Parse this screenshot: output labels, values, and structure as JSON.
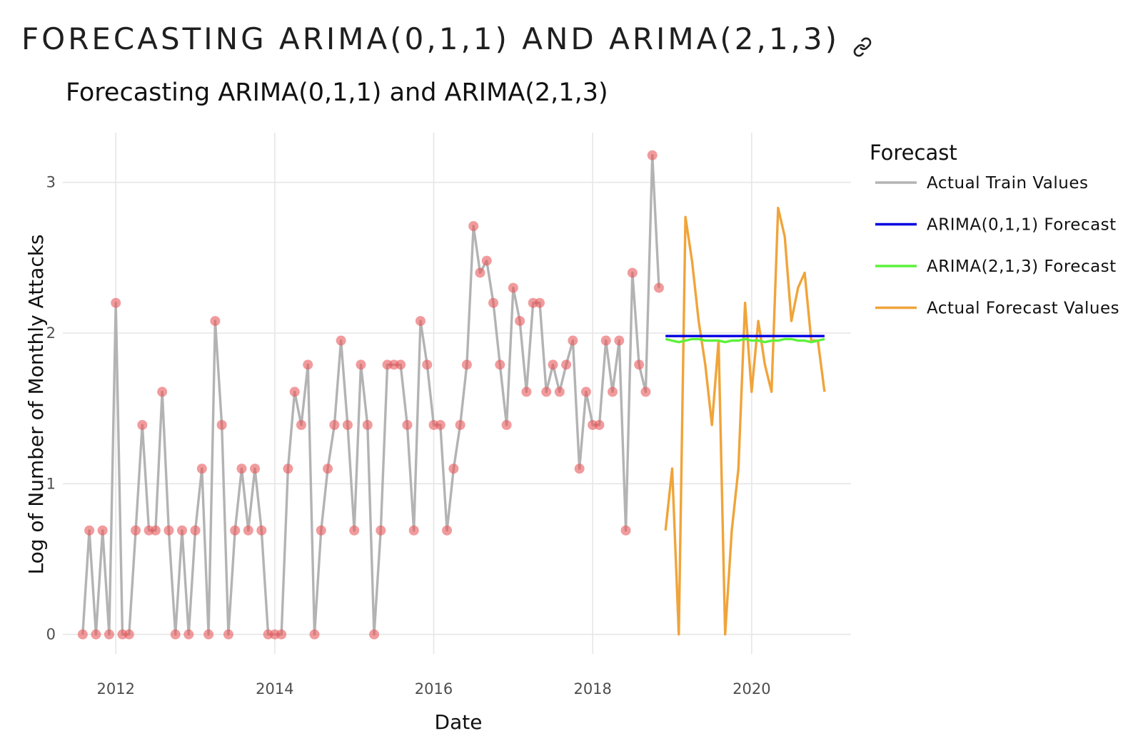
{
  "page": {
    "heading": "FORECASTING ARIMA(0,1,1) AND ARIMA(2,1,3)",
    "link_icon": "link-icon"
  },
  "chart_data": {
    "type": "line",
    "title": "Forecasting ARIMA(0,1,1) and ARIMA(2,1,3)",
    "xlabel": "Date",
    "ylabel": "Log of Number of Monthly Attacks",
    "x_ticks": [
      "2012",
      "2014",
      "2016",
      "2018",
      "2020"
    ],
    "y_ticks": [
      "0",
      "1",
      "2",
      "3"
    ],
    "xlim": [
      "2011-05",
      "2021-04"
    ],
    "ylim": [
      -0.13,
      3.33
    ],
    "grid": true,
    "legend": {
      "title": "Forecast",
      "position": "right"
    },
    "series": [
      {
        "name": "Actual Train Values",
        "color": "#b3b3b3",
        "markers": true,
        "marker_color": "#e8585c",
        "x": [
          "2011-08",
          "2011-09",
          "2011-10",
          "2011-11",
          "2011-12",
          "2012-01",
          "2012-02",
          "2012-03",
          "2012-04",
          "2012-05",
          "2012-06",
          "2012-07",
          "2012-08",
          "2012-09",
          "2012-10",
          "2012-11",
          "2012-12",
          "2013-01",
          "2013-02",
          "2013-03",
          "2013-04",
          "2013-05",
          "2013-06",
          "2013-07",
          "2013-08",
          "2013-09",
          "2013-10",
          "2013-11",
          "2013-12",
          "2014-01",
          "2014-02",
          "2014-03",
          "2014-04",
          "2014-05",
          "2014-06",
          "2014-07",
          "2014-08",
          "2014-09",
          "2014-10",
          "2014-11",
          "2014-12",
          "2015-01",
          "2015-02",
          "2015-03",
          "2015-04",
          "2015-05",
          "2015-06",
          "2015-07",
          "2015-08",
          "2015-09",
          "2015-10",
          "2015-11",
          "2015-12",
          "2016-01",
          "2016-02",
          "2016-03",
          "2016-04",
          "2016-05",
          "2016-06",
          "2016-07",
          "2016-08",
          "2016-09",
          "2016-10",
          "2016-11",
          "2016-12",
          "2017-01",
          "2017-02",
          "2017-03",
          "2017-04",
          "2017-05",
          "2017-06",
          "2017-07",
          "2017-08",
          "2017-09",
          "2017-10",
          "2017-11",
          "2017-12",
          "2018-01",
          "2018-02",
          "2018-03",
          "2018-04",
          "2018-05",
          "2018-06",
          "2018-07",
          "2018-08",
          "2018-09",
          "2018-10",
          "2018-11"
        ],
        "values": [
          0,
          0.69,
          0,
          0.69,
          0,
          2.2,
          0,
          0,
          0.69,
          1.39,
          0.69,
          0.69,
          1.61,
          0.69,
          0,
          0.69,
          0,
          0.69,
          1.1,
          0,
          2.08,
          1.39,
          0,
          0.69,
          1.1,
          0.69,
          1.1,
          0.69,
          0,
          0,
          0,
          1.1,
          1.61,
          1.39,
          1.79,
          0,
          0.69,
          1.1,
          1.39,
          1.95,
          1.39,
          0.69,
          1.79,
          1.39,
          0,
          0.69,
          1.79,
          1.79,
          1.79,
          1.39,
          0.69,
          2.08,
          1.79,
          1.39,
          1.39,
          0.69,
          1.1,
          1.39,
          1.79,
          2.71,
          2.4,
          2.48,
          2.2,
          1.79,
          1.39,
          2.3,
          2.08,
          1.61,
          2.2,
          2.2,
          1.61,
          1.79,
          1.61,
          1.79,
          1.95,
          1.1,
          1.61,
          1.39,
          1.39,
          1.95,
          1.61,
          1.95,
          0.69,
          2.4,
          1.79,
          1.61,
          3.18,
          2.3
        ]
      },
      {
        "name": "ARIMA(0,1,1) Forecast",
        "color": "#0000e0",
        "x": [
          "2018-12",
          "2019-01",
          "2019-02",
          "2019-03",
          "2019-04",
          "2019-05",
          "2019-06",
          "2019-07",
          "2019-08",
          "2019-09",
          "2019-10",
          "2019-11",
          "2019-12",
          "2020-01",
          "2020-02",
          "2020-03",
          "2020-04",
          "2020-05",
          "2020-06",
          "2020-07",
          "2020-08",
          "2020-09",
          "2020-10",
          "2020-11",
          "2020-12"
        ],
        "values": [
          1.98,
          1.98,
          1.98,
          1.98,
          1.98,
          1.98,
          1.98,
          1.98,
          1.98,
          1.98,
          1.98,
          1.98,
          1.98,
          1.98,
          1.98,
          1.98,
          1.98,
          1.98,
          1.98,
          1.98,
          1.98,
          1.98,
          1.98,
          1.98,
          1.98
        ]
      },
      {
        "name": "ARIMA(2,1,3) Forecast",
        "color": "#5cf23a",
        "x": [
          "2018-12",
          "2019-01",
          "2019-02",
          "2019-03",
          "2019-04",
          "2019-05",
          "2019-06",
          "2019-07",
          "2019-08",
          "2019-09",
          "2019-10",
          "2019-11",
          "2019-12",
          "2020-01",
          "2020-02",
          "2020-03",
          "2020-04",
          "2020-05",
          "2020-06",
          "2020-07",
          "2020-08",
          "2020-09",
          "2020-10",
          "2020-11",
          "2020-12"
        ],
        "values": [
          1.96,
          1.95,
          1.94,
          1.95,
          1.96,
          1.96,
          1.95,
          1.95,
          1.95,
          1.94,
          1.95,
          1.95,
          1.96,
          1.95,
          1.95,
          1.94,
          1.95,
          1.95,
          1.96,
          1.96,
          1.95,
          1.95,
          1.94,
          1.95,
          1.96
        ]
      },
      {
        "name": "Actual Forecast Values",
        "color": "#f0a43a",
        "x": [
          "2018-12",
          "2019-01",
          "2019-02",
          "2019-03",
          "2019-04",
          "2019-05",
          "2019-06",
          "2019-07",
          "2019-08",
          "2019-09",
          "2019-10",
          "2019-11",
          "2019-12",
          "2020-01",
          "2020-02",
          "2020-03",
          "2020-04",
          "2020-05",
          "2020-06",
          "2020-07",
          "2020-08",
          "2020-09",
          "2020-10",
          "2020-11",
          "2020-12"
        ],
        "values": [
          0.69,
          1.1,
          0,
          2.77,
          2.48,
          2.08,
          1.79,
          1.39,
          1.95,
          0,
          0.69,
          1.1,
          2.2,
          1.61,
          2.08,
          1.79,
          1.61,
          2.83,
          2.64,
          2.08,
          2.3,
          2.4,
          1.95,
          1.95,
          1.61
        ]
      }
    ]
  }
}
